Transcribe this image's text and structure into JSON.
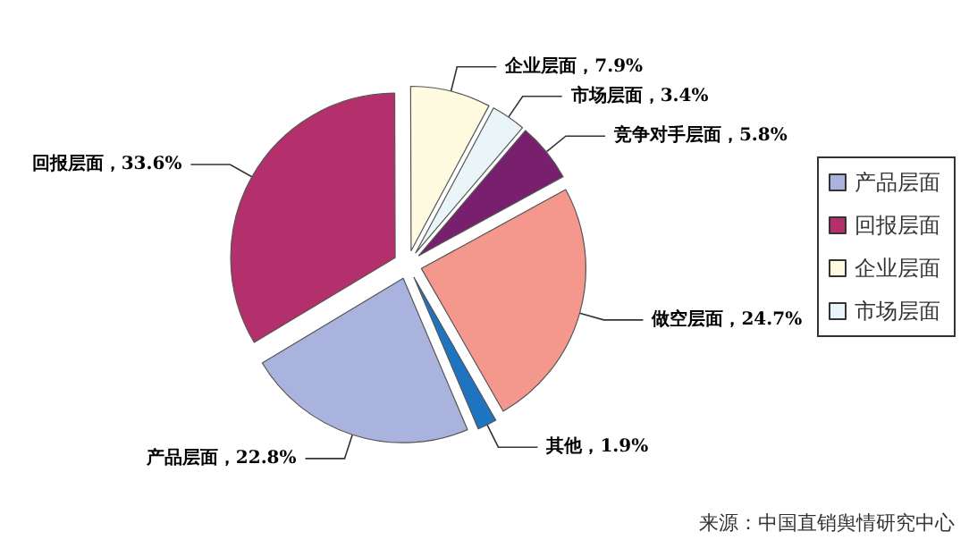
{
  "chart_data": {
    "type": "pie",
    "categories": [
      "产品层面",
      "回报层面",
      "企业层面",
      "市场层面",
      "竞争对手层面",
      "做空层面",
      "其他"
    ],
    "values": [
      22.8,
      33.6,
      7.9,
      3.4,
      5.8,
      24.7,
      1.9
    ],
    "colors": [
      "#aab3dd",
      "#b4306d",
      "#fffbe0",
      "#eaf5fa",
      "#78206e",
      "#f4978c",
      "#1f74c2"
    ],
    "value_labels": [
      "，22.8%",
      "，33.6%",
      "，7.9%",
      "，3.4%",
      "，5.8%",
      "，24.7%",
      "，1.9%"
    ],
    "legend": "right",
    "annotations": [
      "来源：中国直销舆情研究中心"
    ]
  }
}
